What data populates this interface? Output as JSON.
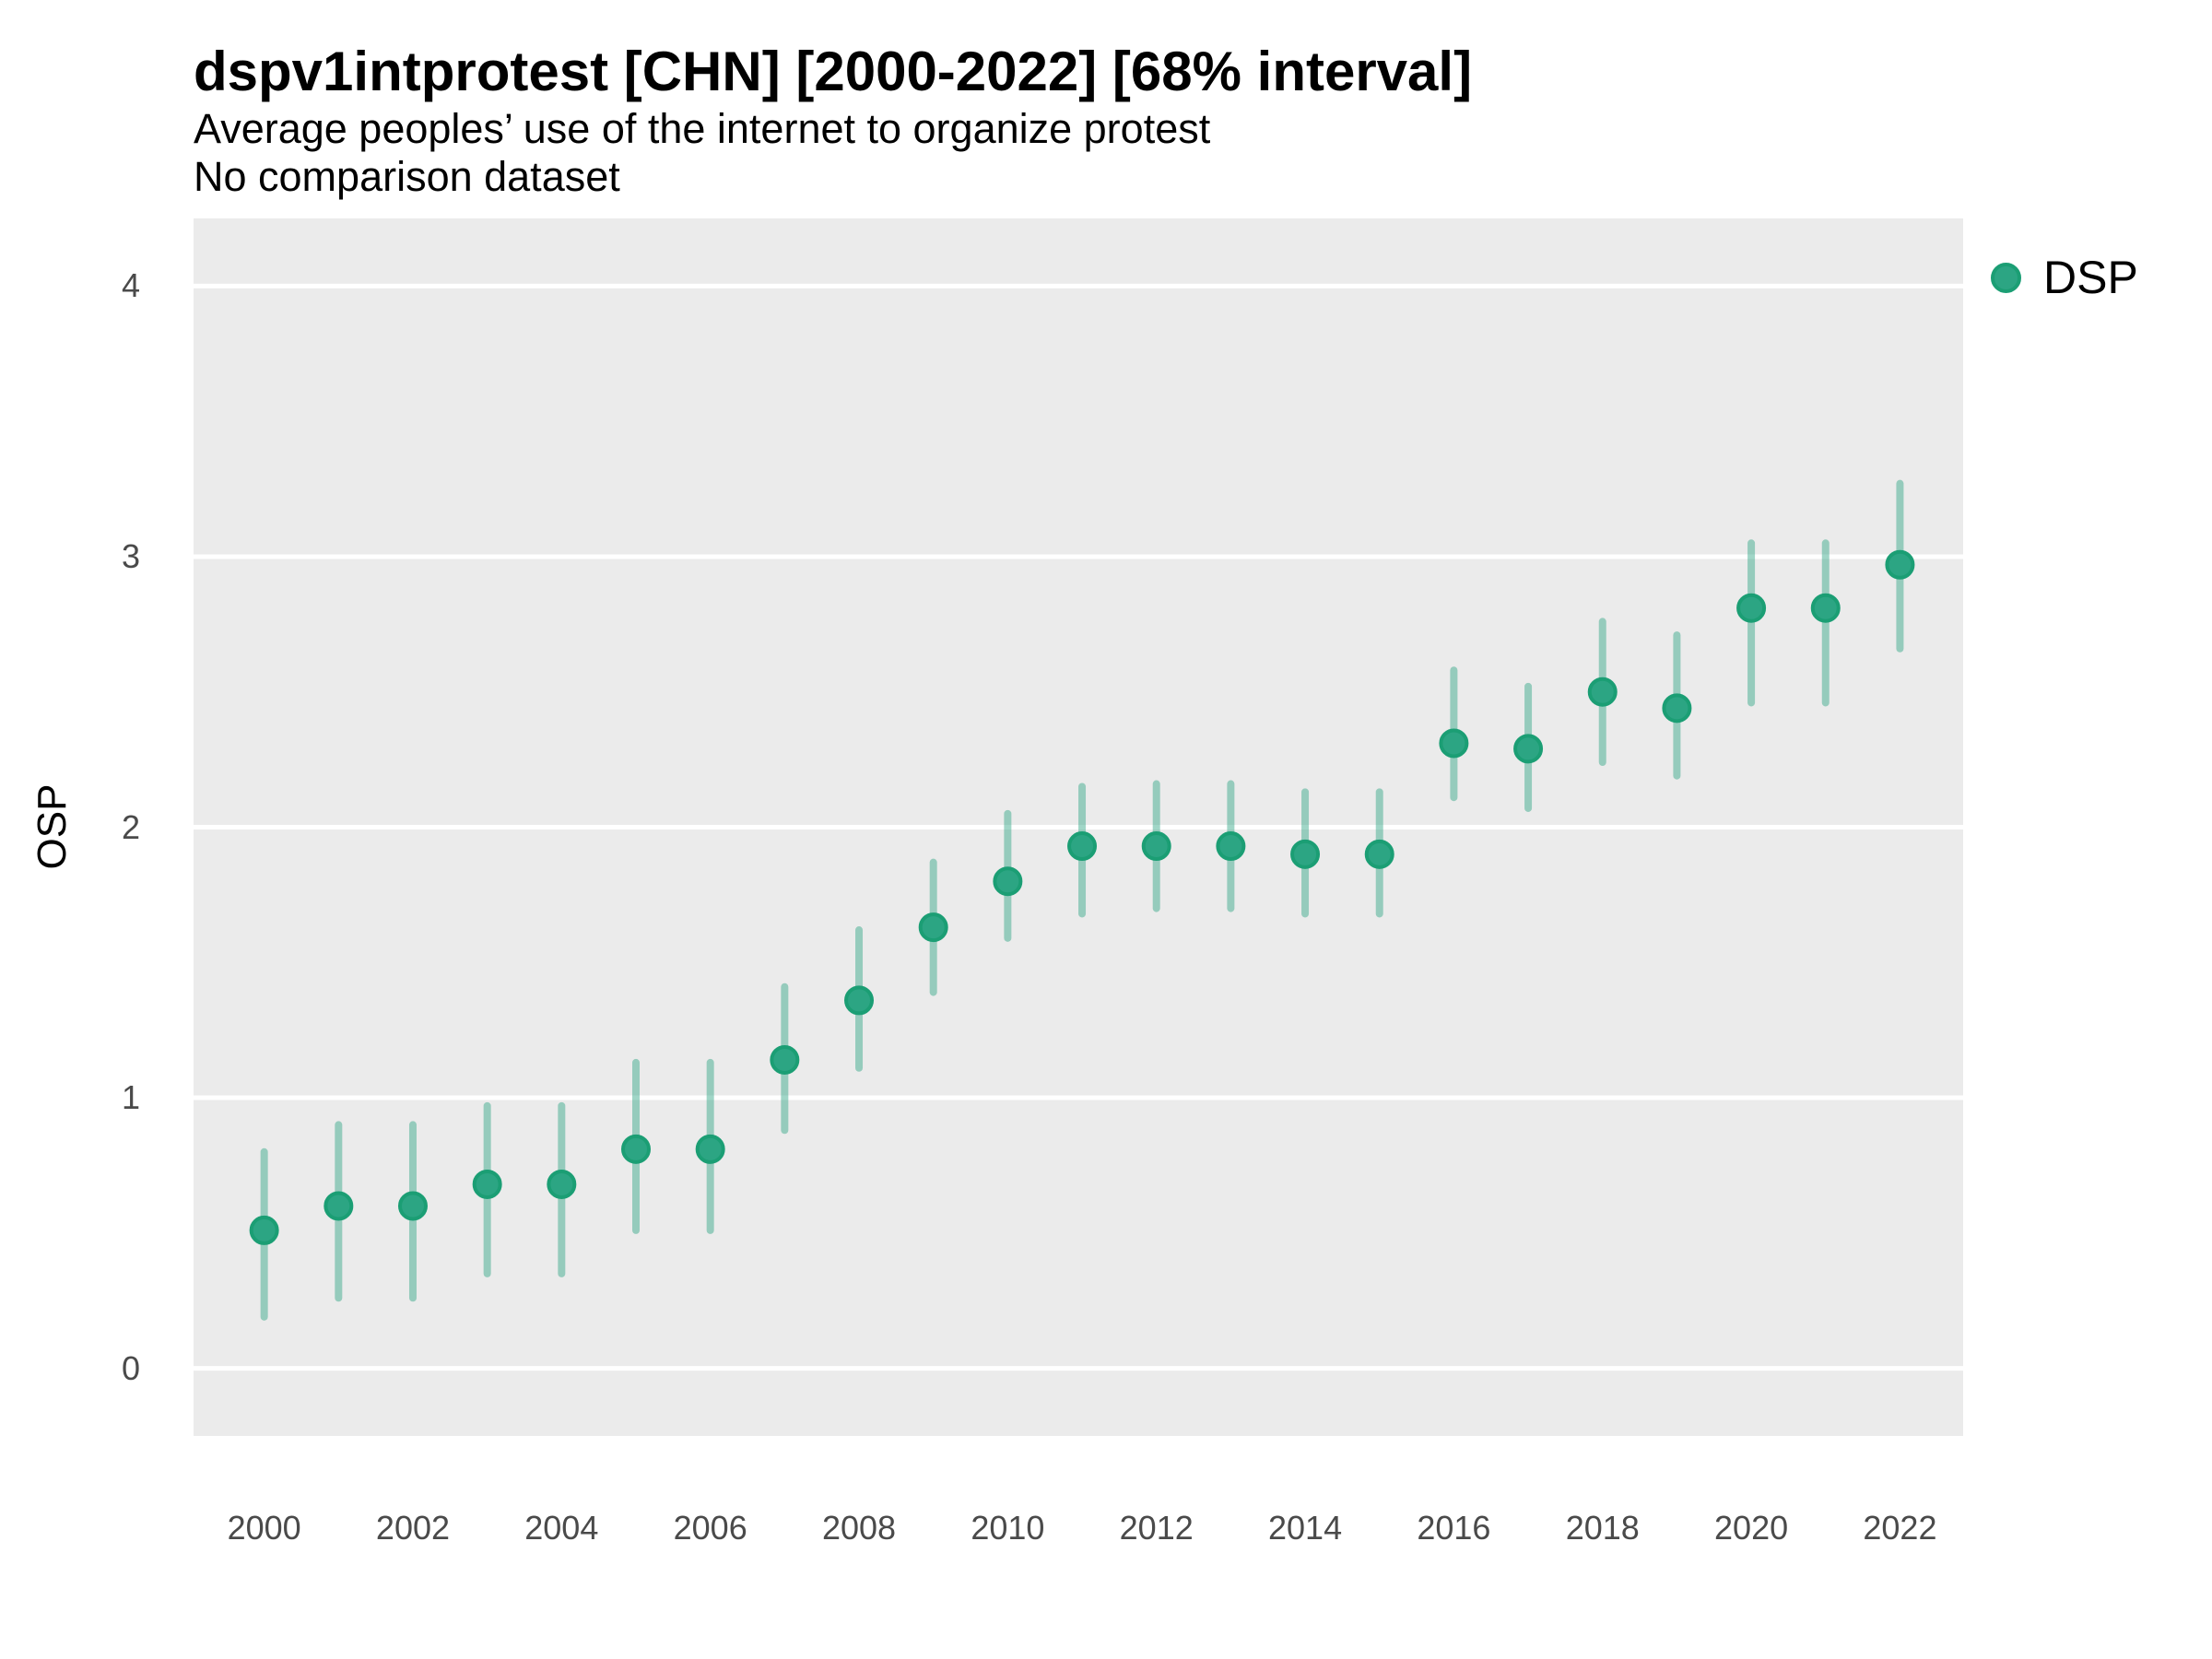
{
  "header": {
    "title": "dspv1intprotest [CHN] [2000-2022] [68% interval]",
    "subtitle": "Average peoples’ use of the internet to organize protest",
    "note": "No comparison dataset"
  },
  "axes": {
    "y_label": "OSP",
    "y_ticks": [
      0,
      1,
      2,
      3,
      4
    ],
    "x_ticks": [
      2000,
      2002,
      2004,
      2006,
      2008,
      2010,
      2012,
      2014,
      2016,
      2018,
      2020,
      2022
    ]
  },
  "legend": {
    "items": [
      {
        "label": "DSP"
      }
    ]
  },
  "colors": {
    "point_fill": "#2CA583",
    "point_border": "#1B9E74",
    "interval_bar": "rgba(44,165,131,0.45)",
    "panel_background": "#EBEBEB",
    "gridline": "#FFFFFF",
    "tick_text": "#4a4a4a"
  },
  "chart_data": {
    "type": "scatter",
    "title": "dspv1intprotest [CHN] [2000-2022] [68% interval]",
    "subtitle": "Average peoples’ use of the internet to organize protest",
    "note": "No comparison dataset",
    "xlabel": "",
    "ylabel": "OSP",
    "ylim": [
      0,
      4
    ],
    "xlim": [
      2000,
      2022
    ],
    "grid": "horizontal-major-only",
    "legend_position": "top-right-outside",
    "interval": "68%",
    "series": [
      {
        "name": "DSP",
        "points": [
          {
            "year": 2000,
            "value": 0.51,
            "lo": 0.19,
            "hi": 0.8
          },
          {
            "year": 2001,
            "value": 0.6,
            "lo": 0.26,
            "hi": 0.9
          },
          {
            "year": 2002,
            "value": 0.6,
            "lo": 0.26,
            "hi": 0.9
          },
          {
            "year": 2003,
            "value": 0.68,
            "lo": 0.35,
            "hi": 0.97
          },
          {
            "year": 2004,
            "value": 0.68,
            "lo": 0.35,
            "hi": 0.97
          },
          {
            "year": 2005,
            "value": 0.81,
            "lo": 0.51,
            "hi": 1.13
          },
          {
            "year": 2006,
            "value": 0.81,
            "lo": 0.51,
            "hi": 1.13
          },
          {
            "year": 2007,
            "value": 1.14,
            "lo": 0.88,
            "hi": 1.41
          },
          {
            "year": 2008,
            "value": 1.36,
            "lo": 1.11,
            "hi": 1.62
          },
          {
            "year": 2009,
            "value": 1.63,
            "lo": 1.39,
            "hi": 1.87
          },
          {
            "year": 2010,
            "value": 1.8,
            "lo": 1.59,
            "hi": 2.05
          },
          {
            "year": 2011,
            "value": 1.93,
            "lo": 1.68,
            "hi": 2.15
          },
          {
            "year": 2012,
            "value": 1.93,
            "lo": 1.7,
            "hi": 2.16
          },
          {
            "year": 2013,
            "value": 1.93,
            "lo": 1.7,
            "hi": 2.16
          },
          {
            "year": 2014,
            "value": 1.9,
            "lo": 1.68,
            "hi": 2.13
          },
          {
            "year": 2015,
            "value": 1.9,
            "lo": 1.68,
            "hi": 2.13
          },
          {
            "year": 2016,
            "value": 2.31,
            "lo": 2.11,
            "hi": 2.58
          },
          {
            "year": 2017,
            "value": 2.29,
            "lo": 2.07,
            "hi": 2.52
          },
          {
            "year": 2018,
            "value": 2.5,
            "lo": 2.24,
            "hi": 2.76
          },
          {
            "year": 2019,
            "value": 2.44,
            "lo": 2.19,
            "hi": 2.71
          },
          {
            "year": 2020,
            "value": 2.81,
            "lo": 2.46,
            "hi": 3.05
          },
          {
            "year": 2021,
            "value": 2.81,
            "lo": 2.46,
            "hi": 3.05
          },
          {
            "year": 2022,
            "value": 2.97,
            "lo": 2.66,
            "hi": 3.27
          }
        ]
      }
    ]
  }
}
